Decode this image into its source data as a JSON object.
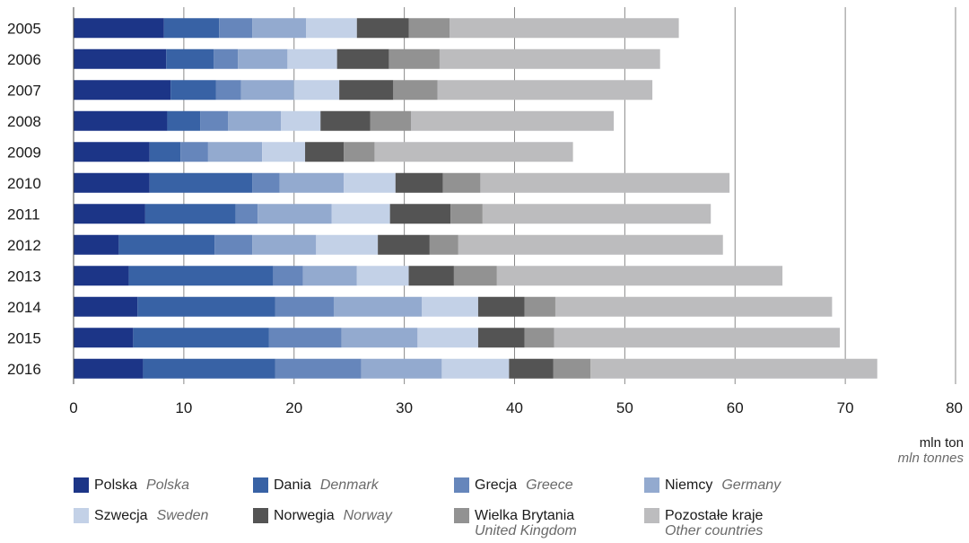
{
  "chart_data": {
    "type": "bar",
    "orientation": "horizontal",
    "stacked": true,
    "categories": [
      "2005",
      "2006",
      "2007",
      "2008",
      "2009",
      "2010",
      "2011",
      "2012",
      "2013",
      "2014",
      "2015",
      "2016"
    ],
    "series": [
      {
        "name": "Polska",
        "name_en": "Polska",
        "color": "#1c3587",
        "values": [
          8.2,
          8.4,
          8.8,
          8.5,
          6.9,
          6.9,
          6.5,
          4.1,
          5.0,
          5.8,
          5.4,
          6.3
        ]
      },
      {
        "name": "Dania",
        "name_en": "Denmark",
        "color": "#3862a5",
        "values": [
          5.0,
          4.3,
          4.1,
          3.0,
          2.8,
          9.3,
          8.2,
          8.7,
          13.1,
          12.5,
          12.3,
          12.0
        ]
      },
      {
        "name": "Grecja",
        "name_en": "Greece",
        "color": "#6686bb",
        "values": [
          3.0,
          2.2,
          2.3,
          2.5,
          2.5,
          2.5,
          2.0,
          3.4,
          2.7,
          5.3,
          6.6,
          7.8
        ]
      },
      {
        "name": "Niemcy",
        "name_en": "Germany",
        "color": "#93aacf",
        "values": [
          4.9,
          4.5,
          4.8,
          4.8,
          4.9,
          5.8,
          6.7,
          5.8,
          4.9,
          8.0,
          6.9,
          7.3
        ]
      },
      {
        "name": "Szwecja",
        "name_en": "Sweden",
        "color": "#c3d1e7",
        "values": [
          4.6,
          4.5,
          4.1,
          3.6,
          3.9,
          4.7,
          5.3,
          5.6,
          4.7,
          5.1,
          5.5,
          6.1
        ]
      },
      {
        "name": "Norwegia",
        "name_en": "Norway",
        "color": "#545454",
        "values": [
          4.7,
          4.7,
          4.9,
          4.5,
          3.5,
          4.3,
          5.5,
          4.7,
          4.1,
          4.2,
          4.2,
          4.0
        ]
      },
      {
        "name": "Wielka Brytania",
        "name_en": "United Kingdom",
        "color": "#929292",
        "values": [
          3.7,
          4.6,
          4.0,
          3.7,
          2.8,
          3.4,
          2.9,
          2.6,
          3.9,
          2.8,
          2.7,
          3.4
        ]
      },
      {
        "name": "Pozostałe kraje",
        "name_en": "Other countries",
        "color": "#bcbcbe",
        "values": [
          20.8,
          20.0,
          19.5,
          18.4,
          18.0,
          22.6,
          20.7,
          24.0,
          25.9,
          25.1,
          25.9,
          26.0
        ]
      }
    ],
    "xlim": [
      0,
      80
    ],
    "xticks": [
      0,
      10,
      20,
      30,
      40,
      50,
      60,
      70,
      80
    ],
    "xlabel": "mln ton",
    "xlabel_en": "mln tonnes",
    "grid": "vertical",
    "legend_position": "bottom"
  }
}
